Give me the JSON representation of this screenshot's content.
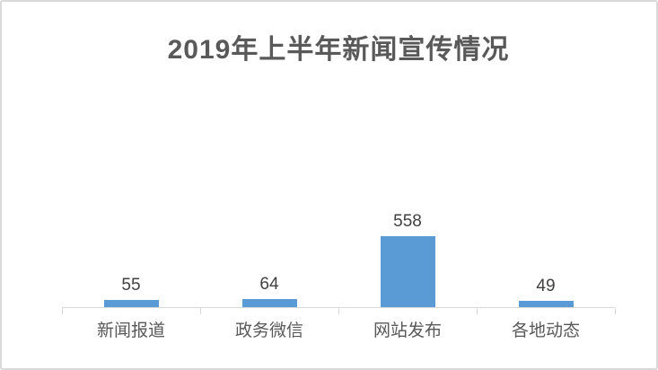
{
  "chart_data": {
    "type": "bar",
    "title": "2019年上半年新闻宣传情况",
    "categories": [
      "新闻报道",
      "政务微信",
      "网站发布",
      "各地动态"
    ],
    "values": [
      55,
      64,
      558,
      49
    ],
    "xlabel": "",
    "ylabel": "",
    "data_labels_shown": true,
    "legend": "none",
    "gridlines": false,
    "y_axis_shown": false,
    "colors": {
      "bar": "#5B9BD5",
      "title_text": "#595959",
      "data_label_text": "#404040",
      "category_label_text": "#595959",
      "axis_line": "#D9D9D9",
      "frame_border": "#D9D9D9",
      "background": "#FFFFFF"
    }
  }
}
